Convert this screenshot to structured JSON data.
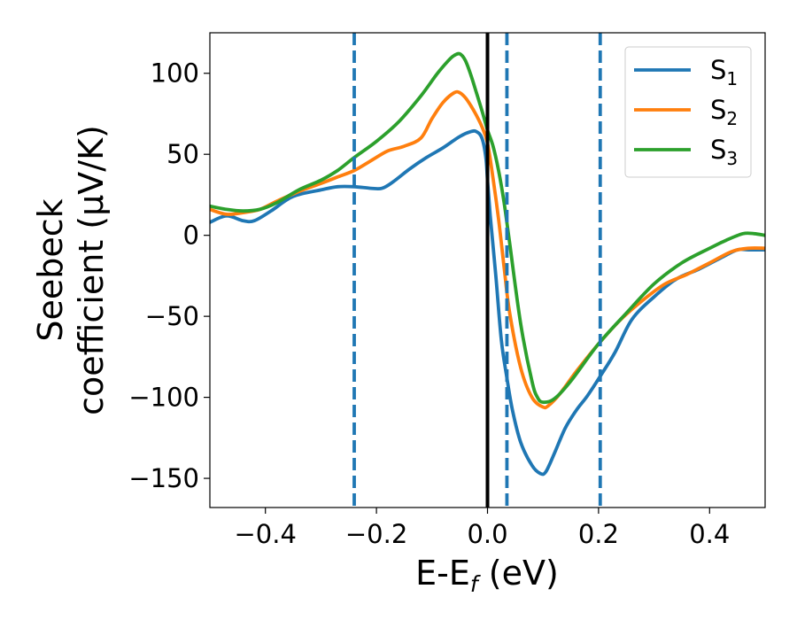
{
  "chart_data": {
    "type": "line",
    "xlabel": {
      "main": "E-E",
      "sub": "f",
      "tail": " (eV)"
    },
    "ylabel": {
      "line1": "Seebeck",
      "line2": "coefficient  (μV/K)"
    },
    "xlim": [
      -0.5,
      0.5
    ],
    "ylim": [
      -168,
      125
    ],
    "xticks": [
      -0.4,
      -0.2,
      0.0,
      0.2,
      0.4
    ],
    "xtick_labels": [
      "−0.4",
      "−0.2",
      "0.0",
      "0.2",
      "0.4"
    ],
    "yticks": [
      100,
      50,
      0,
      -50,
      -100,
      -150
    ],
    "ytick_labels": [
      "100",
      "50",
      "0",
      "−50",
      "−100",
      "−150"
    ],
    "grid": false,
    "legend_position": "top-right",
    "vertical_lines": [
      {
        "x": 0.0,
        "style": "solid",
        "color": "#000000"
      },
      {
        "x": -0.24,
        "style": "dashed",
        "color": "#1f77b4"
      },
      {
        "x": 0.035,
        "style": "dashed",
        "color": "#1f77b4"
      },
      {
        "x": 0.203,
        "style": "dashed",
        "color": "#1f77b4"
      }
    ],
    "series": [
      {
        "name": {
          "main": "S",
          "sub": "1"
        },
        "color": "#1f77b4",
        "x": [
          -0.5,
          -0.47,
          -0.44,
          -0.42,
          -0.39,
          -0.35,
          -0.3,
          -0.27,
          -0.24,
          -0.21,
          -0.19,
          -0.17,
          -0.14,
          -0.11,
          -0.08,
          -0.05,
          -0.03,
          -0.02,
          -0.01,
          -0.003,
          0.0,
          0.005,
          0.015,
          0.025,
          0.035,
          0.045,
          0.06,
          0.08,
          0.095,
          0.105,
          0.12,
          0.14,
          0.16,
          0.18,
          0.203,
          0.23,
          0.26,
          0.3,
          0.34,
          0.38,
          0.42,
          0.45,
          0.47,
          0.5
        ],
        "y": [
          8,
          12,
          9,
          9,
          15,
          24,
          28,
          30,
          30,
          29,
          29,
          33,
          41,
          48,
          54,
          61,
          64,
          64,
          60,
          48,
          34,
          12,
          -25,
          -65,
          -88,
          -108,
          -128,
          -142,
          -147,
          -146,
          -135,
          -119,
          -108,
          -99,
          -87,
          -72,
          -52,
          -38,
          -27,
          -21,
          -14,
          -9,
          -9,
          -9
        ]
      },
      {
        "name": {
          "main": "S",
          "sub": "2"
        },
        "color": "#ff7f0e",
        "x": [
          -0.5,
          -0.47,
          -0.44,
          -0.41,
          -0.38,
          -0.34,
          -0.3,
          -0.27,
          -0.24,
          -0.21,
          -0.18,
          -0.15,
          -0.12,
          -0.1,
          -0.08,
          -0.06,
          -0.05,
          -0.04,
          -0.03,
          -0.02,
          -0.01,
          0.0,
          0.01,
          0.02,
          0.03,
          0.04,
          0.06,
          0.08,
          0.1,
          0.11,
          0.13,
          0.16,
          0.2,
          0.24,
          0.28,
          0.32,
          0.36,
          0.4,
          0.44,
          0.47,
          0.5
        ],
        "y": [
          16,
          13,
          14,
          16,
          21,
          27,
          32,
          36,
          40,
          46,
          52,
          55,
          60,
          72,
          82,
          88,
          88,
          85,
          80,
          74,
          67,
          57,
          35,
          10,
          -20,
          -48,
          -82,
          -100,
          -106,
          -105,
          -98,
          -84,
          -67,
          -52,
          -40,
          -30,
          -24,
          -17,
          -10,
          -8,
          -8
        ]
      },
      {
        "name": {
          "main": "S",
          "sub": "3"
        },
        "color": "#2ca02c",
        "x": [
          -0.5,
          -0.47,
          -0.44,
          -0.41,
          -0.38,
          -0.34,
          -0.3,
          -0.27,
          -0.24,
          -0.2,
          -0.16,
          -0.12,
          -0.09,
          -0.07,
          -0.06,
          -0.05,
          -0.04,
          -0.03,
          -0.02,
          -0.01,
          0.0,
          0.01,
          0.02,
          0.03,
          0.04,
          0.06,
          0.08,
          0.09,
          0.1,
          0.12,
          0.15,
          0.2,
          0.25,
          0.3,
          0.35,
          0.4,
          0.43,
          0.46,
          0.48,
          0.5
        ],
        "y": [
          18,
          16,
          15,
          16,
          20,
          28,
          34,
          40,
          48,
          58,
          70,
          86,
          100,
          108,
          111,
          112,
          108,
          99,
          88,
          77,
          65,
          55,
          40,
          20,
          -5,
          -55,
          -90,
          -100,
          -103,
          -101,
          -90,
          -67,
          -48,
          -30,
          -17,
          -8,
          -3,
          1,
          1,
          0
        ]
      }
    ]
  }
}
